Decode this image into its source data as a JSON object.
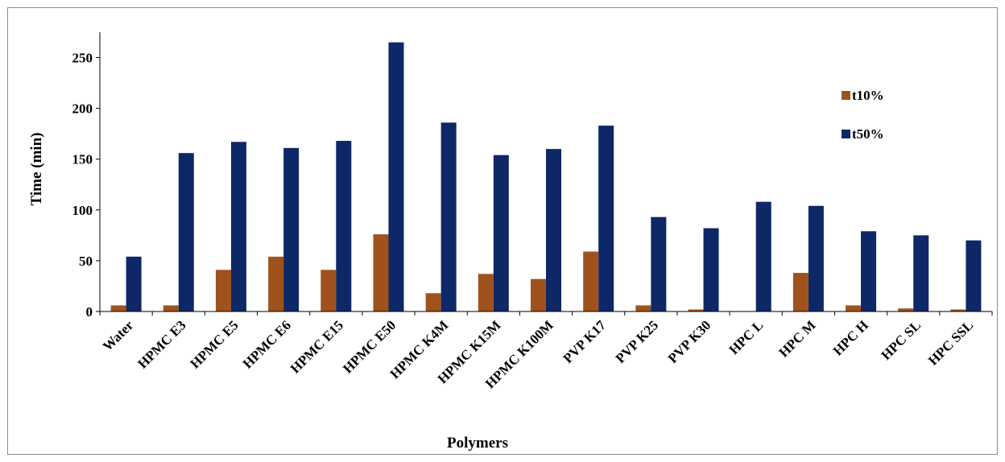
{
  "chart_data": {
    "type": "bar",
    "title": "",
    "xlabel": "Polymers",
    "ylabel": "Time (min)",
    "ylim": [
      0,
      275
    ],
    "yticks": [
      0,
      50,
      100,
      150,
      200,
      250
    ],
    "grid": false,
    "legend_position": "right",
    "categories": [
      "Water",
      "HPMC E3",
      "HPMC E5",
      "HPMC E6",
      "HPMC E15",
      "HPMC E50",
      "HPMC K4M",
      "HPMC K15M",
      "HPMC K100M",
      "PVP K17",
      "PVP K25",
      "PVP K30",
      "HPC L",
      "HPC M",
      "HPC H",
      "HPC SL",
      "HPC SSL"
    ],
    "series": [
      {
        "name": "t10%",
        "color": "#a0521d",
        "values": [
          6,
          6,
          41,
          54,
          41,
          76,
          18,
          37,
          32,
          59,
          6,
          2,
          0,
          38,
          6,
          3,
          2
        ]
      },
      {
        "name": "t50%",
        "color": "#0e2766",
        "values": [
          54,
          156,
          167,
          161,
          168,
          265,
          186,
          154,
          160,
          183,
          93,
          82,
          108,
          104,
          79,
          75,
          70
        ]
      }
    ]
  }
}
